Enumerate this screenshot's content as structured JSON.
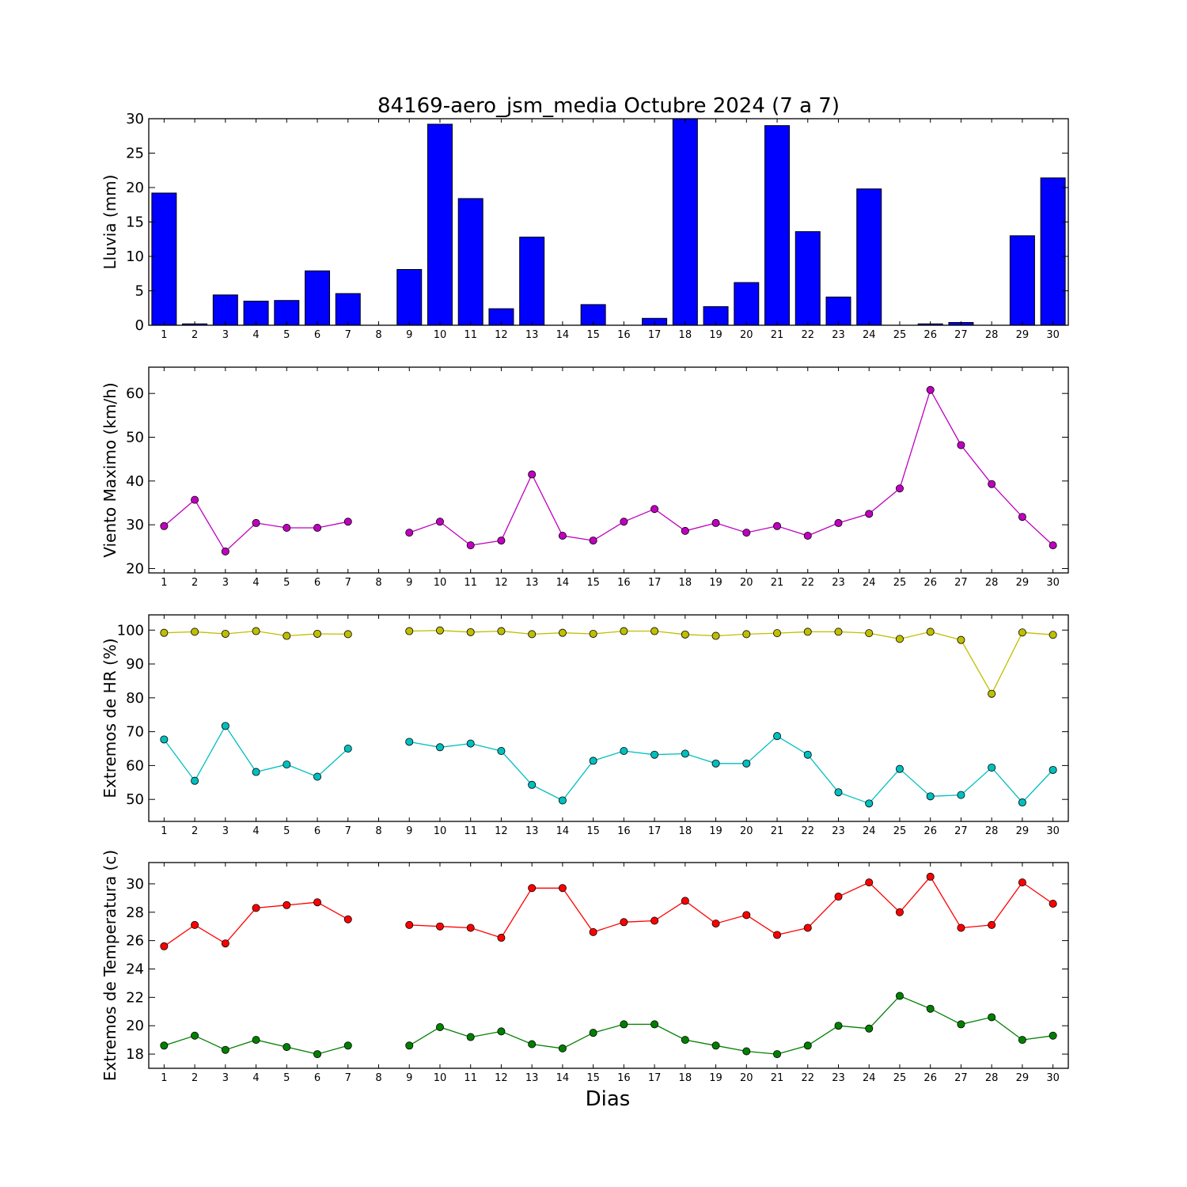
{
  "title": "84169-aero_jsm_media Octubre 2024  (7 a 7)",
  "xlabel": "Dias",
  "days": [
    1,
    2,
    3,
    4,
    5,
    6,
    7,
    8,
    9,
    10,
    11,
    12,
    13,
    14,
    15,
    16,
    17,
    18,
    19,
    20,
    21,
    22,
    23,
    24,
    25,
    26,
    27,
    28,
    29,
    30
  ],
  "chart_data": [
    {
      "type": "bar",
      "ylabel": "Lluvia (mm)",
      "ylim": [
        0,
        30
      ],
      "yticks": [
        0,
        5,
        10,
        15,
        20,
        25,
        30
      ],
      "grid": false,
      "series": [
        {
          "color": "#0000ff",
          "values": [
            19.2,
            0.2,
            4.4,
            3.5,
            3.6,
            7.9,
            4.6,
            0,
            8.1,
            29.2,
            18.4,
            2.4,
            12.8,
            0,
            3.0,
            0,
            1.0,
            30.0,
            2.7,
            6.2,
            29.0,
            13.6,
            4.1,
            19.8,
            0,
            0.2,
            0.4,
            0,
            13.0,
            21.4
          ]
        }
      ]
    },
    {
      "type": "line",
      "ylabel": "Viento Maximo (km/h)",
      "ylim": [
        19,
        66
      ],
      "yticks": [
        20,
        30,
        40,
        50,
        60
      ],
      "grid": false,
      "series": [
        {
          "color": "#bf00bf",
          "values": [
            29.7,
            35.7,
            23.9,
            30.4,
            29.3,
            29.3,
            30.7,
            null,
            28.2,
            30.7,
            25.3,
            26.4,
            41.5,
            27.5,
            26.4,
            30.7,
            33.6,
            28.6,
            30.4,
            28.2,
            29.7,
            27.5,
            30.4,
            32.5,
            38.3,
            60.8,
            48.2,
            39.3,
            31.8,
            25.3
          ]
        }
      ]
    },
    {
      "type": "line",
      "ylabel": "Extremos de HR (%)",
      "ylim": [
        43.5,
        104.5
      ],
      "yticks": [
        50,
        60,
        70,
        80,
        90,
        100
      ],
      "grid": false,
      "series": [
        {
          "color": "#bfbf00",
          "values": [
            99.2,
            99.5,
            98.9,
            99.7,
            98.3,
            98.9,
            98.8,
            null,
            99.7,
            99.9,
            99.4,
            99.7,
            98.8,
            99.2,
            98.9,
            99.7,
            99.7,
            98.7,
            98.3,
            98.8,
            99.1,
            99.5,
            99.5,
            99.1,
            97.4,
            99.5,
            97.1,
            81.2,
            99.3,
            98.6
          ]
        },
        {
          "color": "#00bfbf",
          "values": [
            67.7,
            55.5,
            71.7,
            58.1,
            60.3,
            56.7,
            65.0,
            null,
            67.0,
            65.4,
            66.5,
            64.3,
            54.3,
            49.7,
            61.4,
            64.3,
            63.2,
            63.5,
            60.6,
            60.6,
            68.7,
            63.2,
            52.1,
            48.8,
            59.0,
            50.9,
            51.3,
            59.4,
            49.1,
            58.7
          ]
        }
      ]
    },
    {
      "type": "line",
      "ylabel": "Extremos de Temperatura (c)",
      "ylim": [
        17,
        31.5
      ],
      "yticks": [
        18,
        20,
        22,
        24,
        26,
        28,
        30
      ],
      "grid": false,
      "series": [
        {
          "color": "#ff0000",
          "values": [
            25.6,
            27.1,
            25.8,
            28.3,
            28.5,
            28.7,
            27.5,
            null,
            27.1,
            27.0,
            26.9,
            26.2,
            29.7,
            29.7,
            26.6,
            27.3,
            27.4,
            28.8,
            27.2,
            27.8,
            26.4,
            26.9,
            29.1,
            30.1,
            28.0,
            30.5,
            26.9,
            27.1,
            30.1,
            28.6
          ]
        },
        {
          "color": "#008000",
          "values": [
            18.6,
            19.3,
            18.3,
            19.0,
            18.5,
            18.0,
            18.6,
            null,
            18.6,
            19.9,
            19.2,
            19.6,
            18.7,
            18.4,
            19.5,
            20.1,
            20.1,
            19.0,
            18.6,
            18.2,
            18.0,
            18.6,
            20.0,
            19.8,
            22.1,
            21.2,
            20.1,
            20.6,
            19.0,
            19.3
          ]
        }
      ]
    }
  ]
}
